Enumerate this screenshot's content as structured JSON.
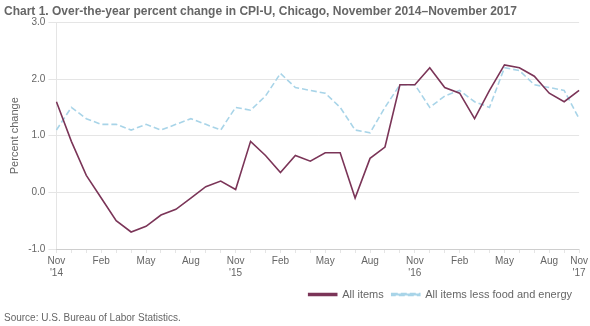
{
  "chart_data": {
    "type": "line",
    "title": "Chart 1. Over-the-year percent change in CPI-U, Chicago, November 2014–November 2017",
    "y_label": "Percent change",
    "annotations": [
      "Source: U.S. Bureau of Labor Statistics."
    ],
    "categories": [
      "Nov\n'14",
      null,
      null,
      "Feb",
      null,
      null,
      "May",
      null,
      null,
      "Aug",
      null,
      null,
      "Nov\n'15",
      null,
      null,
      "Feb",
      null,
      null,
      "May",
      null,
      null,
      "Aug",
      null,
      null,
      "Nov\n'16",
      null,
      null,
      "Feb",
      null,
      null,
      "May",
      null,
      null,
      "Aug",
      null,
      "Nov\n'17"
    ],
    "series": [
      {
        "name": "All items",
        "color": "#7B3558",
        "line_style": "solid",
        "values": [
          1.6,
          0.9,
          0.3,
          -0.1,
          -0.5,
          -0.7,
          -0.6,
          -0.4,
          -0.3,
          -0.1,
          0.1,
          0.2,
          0.05,
          0.9,
          0.65,
          0.35,
          0.65,
          0.55,
          0.7,
          0.7,
          -0.1,
          0.6,
          0.8,
          1.9,
          1.9,
          2.2,
          1.85,
          1.75,
          1.3,
          1.8,
          2.25,
          2.2,
          2.05,
          1.75,
          1.6,
          1.8
        ]
      },
      {
        "name": "All items less food and energy",
        "color": "#A8D4E8",
        "line_style": "dashed",
        "values": [
          1.1,
          1.5,
          1.3,
          1.2,
          1.2,
          1.1,
          1.2,
          1.1,
          1.2,
          1.3,
          1.2,
          1.1,
          1.5,
          1.45,
          1.7,
          2.1,
          1.85,
          1.8,
          1.75,
          1.5,
          1.1,
          1.05,
          1.5,
          1.9,
          1.9,
          1.5,
          1.7,
          1.8,
          1.6,
          1.5,
          2.2,
          2.15,
          1.9,
          1.85,
          1.8,
          1.3
        ]
      }
    ],
    "ylim": [
      -1.0,
      3.0
    ],
    "yticks": [
      {
        "value": -1.0,
        "label": "-1.0"
      },
      {
        "value": 0.0,
        "label": "0.0"
      },
      {
        "value": 1.0,
        "label": "1.0"
      },
      {
        "value": 2.0,
        "label": "2.0"
      },
      {
        "value": 3.0,
        "label": "3.0"
      }
    ],
    "grid": true,
    "legend": "lower right"
  }
}
